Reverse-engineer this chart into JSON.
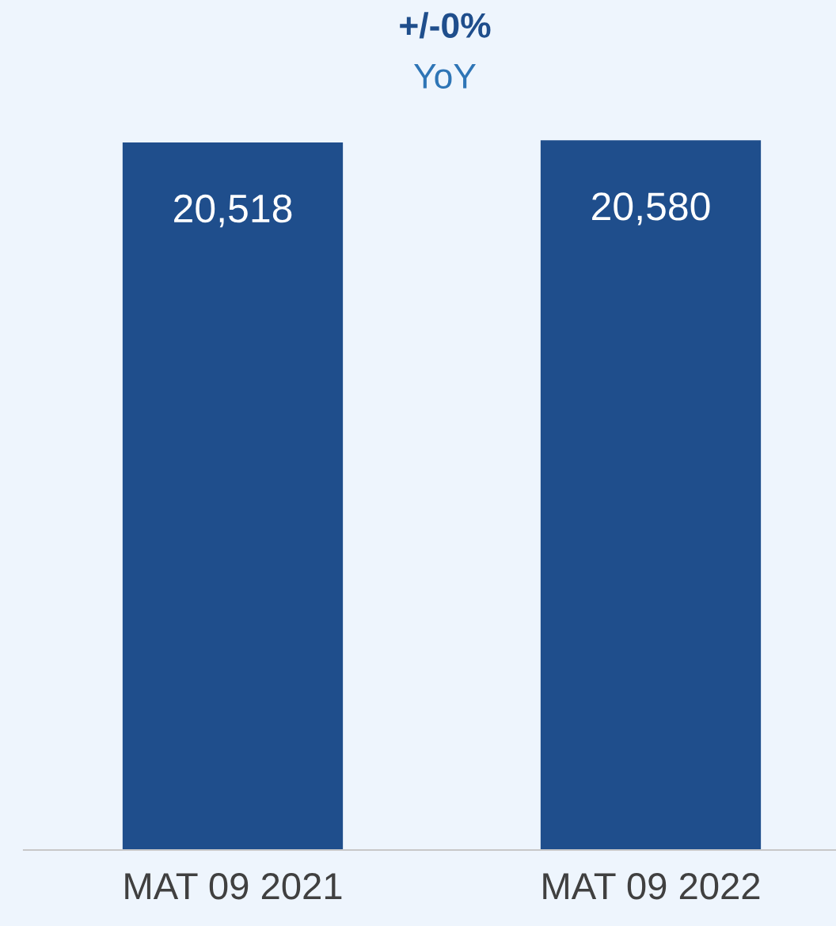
{
  "chart_data": {
    "type": "bar",
    "categories": [
      "MAT 09 2021",
      "MAT 09 2022"
    ],
    "values": [
      20518,
      20580
    ],
    "value_labels": [
      "20,518",
      "20,580"
    ],
    "color": "#1f4e8c",
    "ylim": [
      0,
      24650
    ],
    "tick_labels": "x",
    "grid": false,
    "legend": false,
    "annotations": [
      "+/-0%",
      "YoY"
    ]
  }
}
